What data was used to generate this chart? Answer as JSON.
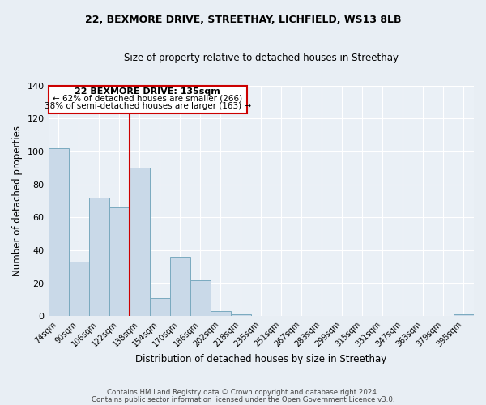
{
  "title1": "22, BEXMORE DRIVE, STREETHAY, LICHFIELD, WS13 8LB",
  "title2": "Size of property relative to detached houses in Streethay",
  "xlabel": "Distribution of detached houses by size in Streethay",
  "ylabel": "Number of detached properties",
  "bar_labels": [
    "74sqm",
    "90sqm",
    "106sqm",
    "122sqm",
    "138sqm",
    "154sqm",
    "170sqm",
    "186sqm",
    "202sqm",
    "218sqm",
    "235sqm",
    "251sqm",
    "267sqm",
    "283sqm",
    "299sqm",
    "315sqm",
    "331sqm",
    "347sqm",
    "363sqm",
    "379sqm",
    "395sqm"
  ],
  "bar_heights": [
    102,
    33,
    72,
    66,
    90,
    11,
    36,
    22,
    3,
    1,
    0,
    0,
    0,
    0,
    0,
    0,
    0,
    0,
    0,
    0,
    1
  ],
  "bar_color": "#c9d9e8",
  "bar_edge_color": "#7aaabf",
  "background_color": "#e8eef4",
  "plot_bg_color": "#eaf0f6",
  "ylim": [
    0,
    140
  ],
  "yticks": [
    0,
    20,
    40,
    60,
    80,
    100,
    120,
    140
  ],
  "vline_x_index": 4,
  "vline_color": "#cc0000",
  "annotation_title": "22 BEXMORE DRIVE: 135sqm",
  "annotation_line1": "← 62% of detached houses are smaller (266)",
  "annotation_line2": "38% of semi-detached houses are larger (163) →",
  "annotation_box_color": "#cc0000",
  "footer1": "Contains HM Land Registry data © Crown copyright and database right 2024.",
  "footer2": "Contains public sector information licensed under the Open Government Licence v3.0."
}
